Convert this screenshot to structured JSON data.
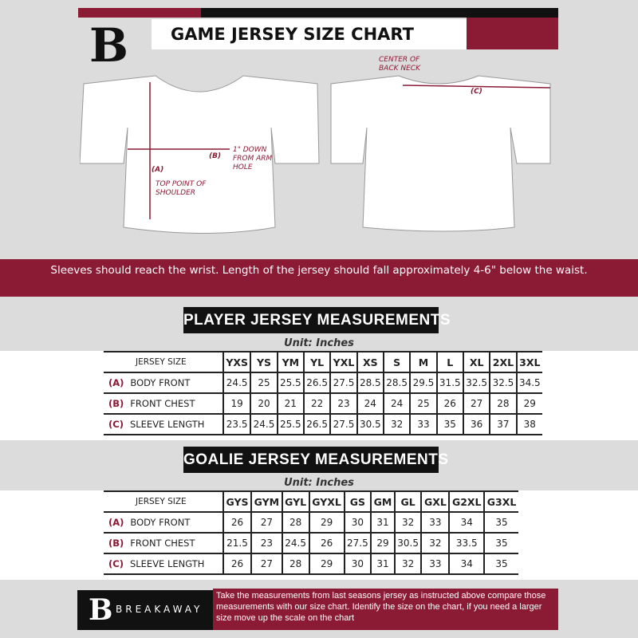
{
  "header": {
    "title": "GAME JERSEY SIZE CHART",
    "logo": "B"
  },
  "diagram": {
    "center_back_neck": "CENTER OF BACK NECK",
    "label_a": "(A)",
    "top_point": "TOP POINT OF SHOULDER",
    "label_b": "(B)",
    "one_inch_down": "1\" DOWN FROM ARM HOLE",
    "label_c": "(C)"
  },
  "instruction": "Sleeves should reach the wrist. Length of the jersey should fall approximately 4-6\" below the waist.",
  "player": {
    "heading": "PLAYER JERSEY MEASUREMENTS",
    "unit": "Unit: Inches",
    "size_header": "JERSEY SIZE",
    "sizes": [
      "YXS",
      "YS",
      "YM",
      "YL",
      "YXL",
      "XS",
      "S",
      "M",
      "L",
      "XL",
      "2XL",
      "3XL"
    ],
    "rows": [
      {
        "letter": "(A)",
        "label": "BODY FRONT",
        "values": [
          "24.5",
          "25",
          "25.5",
          "26.5",
          "27.5",
          "28.5",
          "28.5",
          "29.5",
          "31.5",
          "32.5",
          "32.5",
          "34.5"
        ]
      },
      {
        "letter": "(B)",
        "label": "FRONT CHEST",
        "values": [
          "19",
          "20",
          "21",
          "22",
          "23",
          "24",
          "24",
          "25",
          "26",
          "27",
          "28",
          "29"
        ]
      },
      {
        "letter": "(C)",
        "label": "SLEEVE LENGTH",
        "values": [
          "23.5",
          "24.5",
          "25.5",
          "26.5",
          "27.5",
          "30.5",
          "32",
          "33",
          "35",
          "36",
          "37",
          "38"
        ]
      }
    ]
  },
  "goalie": {
    "heading": "GOALIE JERSEY MEASUREMENTS",
    "unit": "Unit: Inches",
    "size_header": "JERSEY SIZE",
    "sizes": [
      "GYS",
      "GYM",
      "GYL",
      "GYXL",
      "GS",
      "GM",
      "GL",
      "GXL",
      "G2XL",
      "G3XL"
    ],
    "rows": [
      {
        "letter": "(A)",
        "label": "BODY FRONT",
        "values": [
          "26",
          "27",
          "28",
          "29",
          "30",
          "31",
          "32",
          "33",
          "34",
          "35"
        ]
      },
      {
        "letter": "(B)",
        "label": "FRONT CHEST",
        "values": [
          "21.5",
          "23",
          "24.5",
          "26",
          "27.5",
          "29",
          "30.5",
          "32",
          "33.5",
          "35"
        ]
      },
      {
        "letter": "(C)",
        "label": "SLEEVE LENGTH",
        "values": [
          "26",
          "27",
          "28",
          "29",
          "30",
          "31",
          "32",
          "33",
          "34",
          "35"
        ]
      }
    ]
  },
  "footer": {
    "brand": "BREAKAWAY",
    "logo": "B",
    "text": "Take the measurements from last seasons jersey as instructed above compare those measurements  with our size chart. Identify the size on the chart, if you need a larger size move up the scale on the chart"
  },
  "colors": {
    "accent": "#8b1a35",
    "dark": "#111111",
    "background": "#dcdcdc"
  }
}
